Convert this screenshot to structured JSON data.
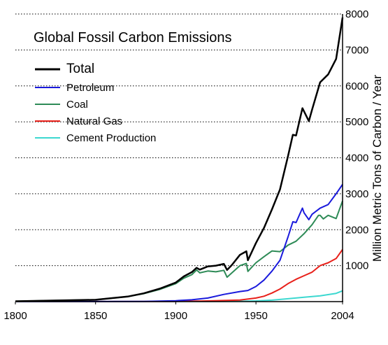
{
  "chart_data": {
    "type": "line",
    "title": "Global Fossil Carbon Emissions",
    "ylabel": "Million Metric Tons of Carbon / Year",
    "xlabel": "",
    "xlim": [
      1800,
      2004
    ],
    "ylim": [
      0,
      8000
    ],
    "x_ticks": [
      1800,
      1850,
      1900,
      1950,
      2004
    ],
    "y_ticks": [
      1000,
      2000,
      3000,
      4000,
      5000,
      6000,
      7000,
      8000
    ],
    "grid": "horizontal dotted",
    "legend_position": "top-left",
    "colors": {
      "Total": "#000000",
      "Petroleum": "#1a1adc",
      "Coal": "#2e8b57",
      "Natural Gas": "#e8201a",
      "Cement Production": "#3cd8d0"
    },
    "series": [
      {
        "name": "Total",
        "x": [
          1800,
          1850,
          1870,
          1880,
          1890,
          1900,
          1905,
          1910,
          1913,
          1915,
          1920,
          1925,
          1930,
          1932,
          1935,
          1940,
          1944,
          1945,
          1950,
          1955,
          1960,
          1965,
          1970,
          1973,
          1975,
          1979,
          1980,
          1983,
          1985,
          1990,
          1995,
          2000,
          2004
        ],
        "y": [
          10,
          50,
          140,
          230,
          360,
          530,
          700,
          820,
          940,
          890,
          980,
          1000,
          1050,
          880,
          1020,
          1300,
          1400,
          1150,
          1630,
          2050,
          2570,
          3120,
          4050,
          4640,
          4620,
          5380,
          5290,
          5020,
          5340,
          6100,
          6320,
          6750,
          7900
        ]
      },
      {
        "name": "Petroleum",
        "x": [
          1800,
          1880,
          1900,
          1910,
          1920,
          1930,
          1940,
          1945,
          1950,
          1955,
          1960,
          1965,
          1970,
          1973,
          1975,
          1979,
          1980,
          1983,
          1985,
          1990,
          1995,
          2000,
          2004
        ],
        "y": [
          0,
          5,
          25,
          50,
          100,
          200,
          280,
          310,
          420,
          600,
          850,
          1150,
          1800,
          2220,
          2200,
          2600,
          2470,
          2280,
          2430,
          2600,
          2700,
          3000,
          3260
        ]
      },
      {
        "name": "Coal",
        "x": [
          1800,
          1850,
          1870,
          1880,
          1890,
          1900,
          1905,
          1910,
          1913,
          1915,
          1920,
          1925,
          1930,
          1932,
          1935,
          1940,
          1944,
          1945,
          1950,
          1955,
          1960,
          1965,
          1970,
          1975,
          1980,
          1985,
          1989,
          1990,
          1992,
          1995,
          2000,
          2004
        ],
        "y": [
          10,
          50,
          140,
          220,
          340,
          500,
          650,
          750,
          880,
          800,
          850,
          830,
          870,
          680,
          800,
          1000,
          1060,
          840,
          1080,
          1250,
          1410,
          1390,
          1570,
          1680,
          1890,
          2140,
          2400,
          2400,
          2300,
          2400,
          2310,
          2800
        ]
      },
      {
        "name": "Natural Gas",
        "x": [
          1800,
          1900,
          1920,
          1940,
          1950,
          1955,
          1960,
          1965,
          1970,
          1975,
          1980,
          1985,
          1990,
          1995,
          2000,
          2004
        ],
        "y": [
          0,
          5,
          20,
          45,
          100,
          150,
          240,
          350,
          500,
          620,
          720,
          820,
          1000,
          1080,
          1200,
          1450
        ]
      },
      {
        "name": "Cement Production",
        "x": [
          1800,
          1920,
          1940,
          1950,
          1960,
          1970,
          1980,
          1990,
          2000,
          2004
        ],
        "y": [
          0,
          5,
          10,
          20,
          40,
          80,
          120,
          160,
          230,
          300
        ]
      }
    ]
  }
}
